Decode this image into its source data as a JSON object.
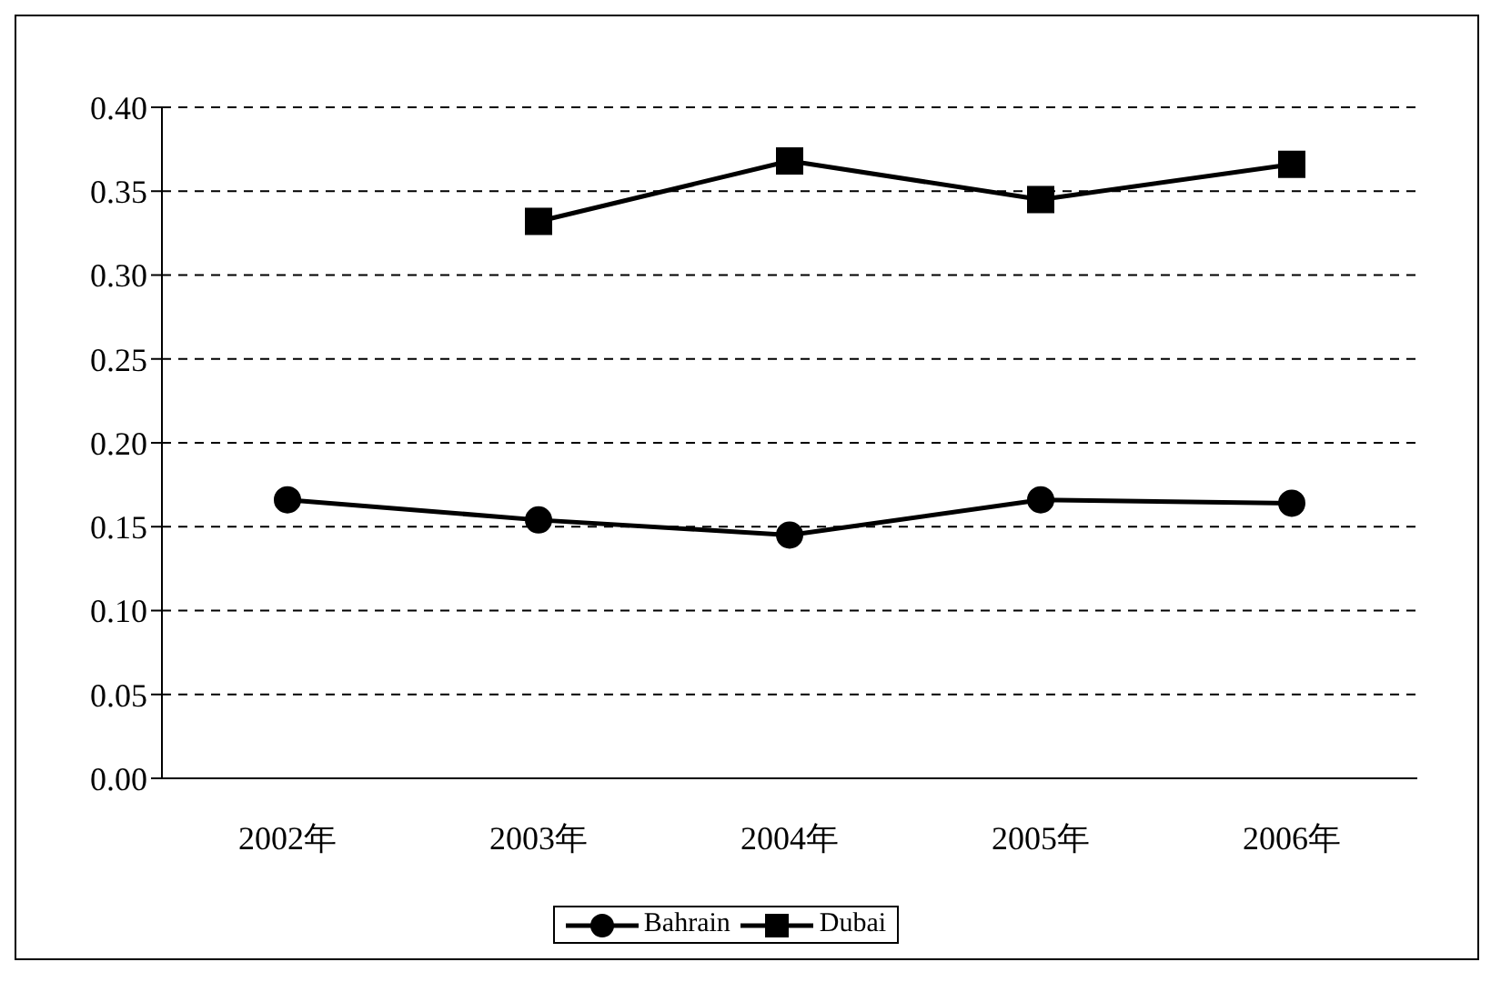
{
  "chart_data": {
    "type": "line",
    "categories": [
      "2002年",
      "2003年",
      "2004年",
      "2005年",
      "2006年"
    ],
    "series": [
      {
        "name": "Bahrain",
        "color": "#000000",
        "marker": "circle",
        "values": [
          0.166,
          0.154,
          0.145,
          0.166,
          0.164
        ]
      },
      {
        "name": "Dubai",
        "color": "#000000",
        "marker": "square",
        "values": [
          null,
          0.332,
          0.368,
          0.345,
          0.366
        ]
      }
    ],
    "ylim": [
      0,
      0.4
    ],
    "yticks": [
      {
        "value": 0,
        "label": "0.00"
      },
      {
        "value": 0.05,
        "label": "0.05"
      },
      {
        "value": 0.1,
        "label": "0.10"
      },
      {
        "value": 0.15,
        "label": "0.15"
      },
      {
        "value": 0.2,
        "label": "0.20"
      },
      {
        "value": 0.25,
        "label": "0.25"
      },
      {
        "value": 0.3,
        "label": "0.30"
      },
      {
        "value": 0.35,
        "label": "0.35"
      },
      {
        "value": 0.4,
        "label": "0.40"
      }
    ],
    "grid": "y",
    "legend": "bottom",
    "line_style": "solid"
  }
}
